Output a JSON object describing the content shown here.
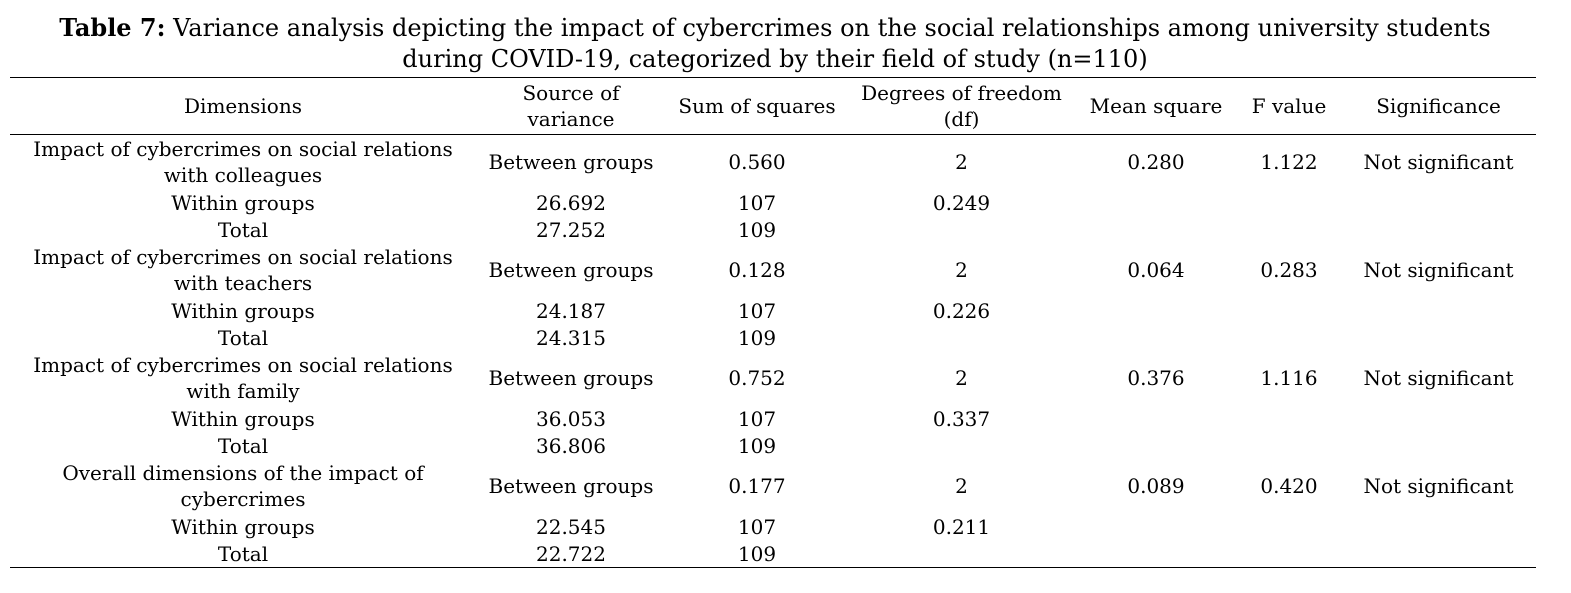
{
  "caption": {
    "label": "Table 7:",
    "text": " Variance analysis depicting the impact of cybercrimes on the social relationships among university students during COVID-19, categorized by their field of study (n=110)"
  },
  "headers": {
    "dimensions": "Dimensions",
    "source": "Source of variance",
    "sum_squares": "Sum of squares",
    "df": "Degrees of freedom (df)",
    "mean_square": "Mean square",
    "f_value": "F value",
    "significance": "Significance"
  },
  "groups": [
    {
      "dimension": "Impact of cybercrimes on social relations with colleagues",
      "between": {
        "source": "Between groups",
        "ss": "0.560",
        "df": "2",
        "ms": "0.280",
        "f": "1.122",
        "sig": "Not significant"
      },
      "within": {
        "source": "Within groups",
        "ss": "26.692",
        "df": "107",
        "ms": "0.249"
      },
      "total": {
        "source": "Total",
        "ss": "27.252",
        "df": "109"
      }
    },
    {
      "dimension": "Impact of cybercrimes on social relations with teachers",
      "between": {
        "source": "Between groups",
        "ss": "0.128",
        "df": "2",
        "ms": "0.064",
        "f": "0.283",
        "sig": "Not significant"
      },
      "within": {
        "source": "Within groups",
        "ss": "24.187",
        "df": "107",
        "ms": "0.226"
      },
      "total": {
        "source": "Total",
        "ss": "24.315",
        "df": "109"
      }
    },
    {
      "dimension": "Impact of cybercrimes on social relations with family",
      "between": {
        "source": "Between groups",
        "ss": "0.752",
        "df": "2",
        "ms": "0.376",
        "f": "1.116",
        "sig": "Not significant"
      },
      "within": {
        "source": "Within groups",
        "ss": "36.053",
        "df": "107",
        "ms": "0.337"
      },
      "total": {
        "source": "Total",
        "ss": "36.806",
        "df": "109"
      }
    },
    {
      "dimension": "Overall dimensions of the impact of cybercrimes",
      "between": {
        "source": "Between groups",
        "ss": "0.177",
        "df": "2",
        "ms": "0.089",
        "f": "0.420",
        "sig": "Not significant"
      },
      "within": {
        "source": "Within groups",
        "ss": "22.545",
        "df": "107",
        "ms": "0.211"
      },
      "total": {
        "source": "Total",
        "ss": "22.722",
        "df": "109"
      }
    }
  ]
}
